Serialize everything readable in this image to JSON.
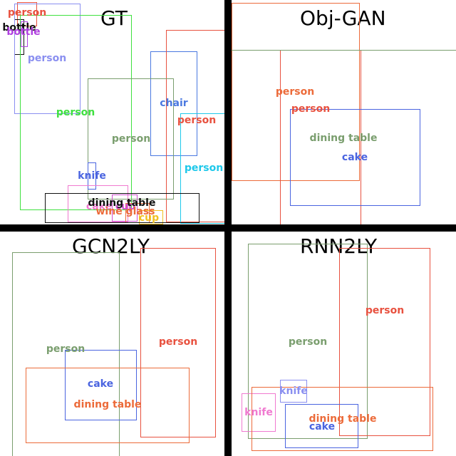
{
  "colors": {
    "person_red": "#e8513f",
    "person_green": "#3fe03f",
    "person_sage": "#7a9e6e",
    "person_lavender": "#8a8ff0",
    "person_cyan": "#1ec8ea",
    "person_orange": "#ec6b3a",
    "chair_blue": "#4a78e0",
    "cake_blue": "#4a64e0",
    "dining_black": "#111111",
    "dining_sage": "#7a9e6e",
    "dining_orange": "#ec6b3a",
    "knife_blue": "#4a64e0",
    "knife_periwinkle": "#8a8ff0",
    "knife_pink": "#f07ad0",
    "bottle_black": "#111111",
    "bottle_purple": "#b040e0",
    "cup_magenta": "#d050d0",
    "cup_yellow": "#f0c020",
    "wine_orange": "#ec6b3a",
    "orange_line": "#ec6b3a",
    "sage_line": "#7a9e6e"
  },
  "panels": [
    {
      "title": "GT",
      "boxes": [
        {
          "label": "person",
          "color": "#e8513f"
        },
        {
          "label": "bottle",
          "color": "#111111"
        },
        {
          "label": "bottle",
          "color": "#b040e0"
        },
        {
          "label": "person",
          "color": "#8a8ff0"
        },
        {
          "label": "person",
          "color": "#3fe03f"
        },
        {
          "label": "chair",
          "color": "#4a78e0"
        },
        {
          "label": "person",
          "color": "#e8513f"
        },
        {
          "label": "person",
          "color": "#7a9e6e"
        },
        {
          "label": "person",
          "color": "#1ec8ea"
        },
        {
          "label": "knife",
          "color": "#4a64e0"
        },
        {
          "label": "dining table",
          "color": "#111111"
        },
        {
          "label": "cup",
          "color": "#d050d0"
        },
        {
          "label": "cake",
          "color": "#f07ad0"
        },
        {
          "label": "wine glass",
          "color": "#ec6b3a"
        },
        {
          "label": "cup",
          "color": "#f0c020"
        }
      ]
    },
    {
      "title": "Obj-GAN",
      "boxes": [
        {
          "label": "person",
          "color": "#ec6b3a"
        },
        {
          "label": "person",
          "color": "#e8513f"
        },
        {
          "label": "dining table",
          "color": "#7a9e6e"
        },
        {
          "label": "cake",
          "color": "#4a64e0"
        },
        {
          "label": "",
          "color": "#7a9e6e"
        }
      ]
    },
    {
      "title": "GCN2LY",
      "boxes": [
        {
          "label": "person",
          "color": "#7a9e6e"
        },
        {
          "label": "person",
          "color": "#e8513f"
        },
        {
          "label": "cake",
          "color": "#4a64e0"
        },
        {
          "label": "dining table",
          "color": "#ec6b3a"
        }
      ]
    },
    {
      "title": "RNN2LY",
      "boxes": [
        {
          "label": "person",
          "color": "#7a9e6e"
        },
        {
          "label": "person",
          "color": "#e8513f"
        },
        {
          "label": "knife",
          "color": "#8a8ff0"
        },
        {
          "label": "knife",
          "color": "#f07ad0"
        },
        {
          "label": "dining table",
          "color": "#ec6b3a"
        },
        {
          "label": "cake",
          "color": "#4a64e0"
        }
      ]
    }
  ]
}
